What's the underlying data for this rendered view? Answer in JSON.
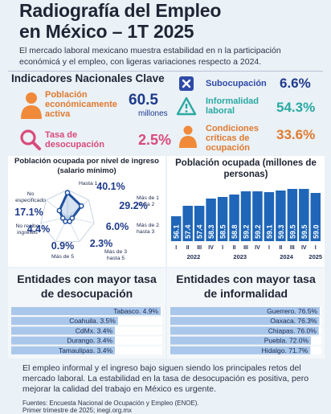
{
  "header": {
    "title_line1": "Radiografía del Empleo",
    "title_line2": "en México – 1T 2025",
    "lead": "El mercado laboral mexicano muestra estabilidad en n la participación económicá y el empleo, con ligeras variaciones respecto a 2024."
  },
  "indicators": {
    "title": "Indicadores Nacionales Clave",
    "items": [
      {
        "label": "Población económicamente activa",
        "value": "60.5",
        "unit": "millones",
        "icon": "person-icon",
        "color": "#f08a3a"
      },
      {
        "label": "Tasa de desocupación",
        "value": "2.5%",
        "icon": "magnifier-icon",
        "color": "#d94a7a"
      },
      {
        "label": "Subocupación",
        "value": "6.6%",
        "icon": "x-square-icon",
        "color": "#2e4aa6"
      },
      {
        "label": "Informalidad laboral",
        "value": "54.3%",
        "icon": "warning-triangle-icon",
        "color": "#2aa9a2"
      },
      {
        "label": "Condiciones críticas de ocupación",
        "value": "33.6%",
        "icon": "person-icon",
        "color": "#f08a3a"
      }
    ]
  },
  "chart_data": [
    {
      "type": "radar",
      "title": "Población ocupada por nivel de ingreso (salario mínimo)",
      "categories": [
        "Hasta 1",
        "Más de 1 hasta 2",
        "Más de 2 hasta 3",
        "Más de 3 hasta 5",
        "Más de 5",
        "No recibe ingresos",
        "No especificado"
      ],
      "values": [
        40.1,
        29.2,
        6.0,
        2.3,
        0.9,
        4.4,
        17.1
      ],
      "value_labels": [
        "40.1%",
        "29.2%",
        "6.0%",
        "2.3%",
        "0.9%",
        "4.4%",
        "17.1%"
      ]
    },
    {
      "type": "bar",
      "title": "Población ocupada (millones de personas)",
      "categories": [
        "I",
        "II",
        "III",
        "IV",
        "I",
        "II",
        "III",
        "IV",
        "I",
        "II",
        "III",
        "IV",
        "I"
      ],
      "years": [
        "2022",
        "2023",
        "2024",
        "2025"
      ],
      "values": [
        56.1,
        57.4,
        57.4,
        58.3,
        58.5,
        58.8,
        59.2,
        59.2,
        59.1,
        59.3,
        59.5,
        59.5,
        59.0
      ],
      "color": "#1f66b8"
    },
    {
      "type": "bar",
      "orientation": "horizontal",
      "title": "Entidades con mayor tasa de desocupación",
      "categories": [
        "Tabasco",
        "Coahuila",
        "CdMx",
        "Durango",
        "Tamaulipas"
      ],
      "values": [
        4.9,
        3.5,
        3.4,
        3.4,
        3.4
      ],
      "labels": [
        "Tabasco. 4.9%",
        "Coahuila. 3.5%",
        "CdMx. 3.4%",
        "Durango. 3.4%",
        "Tamaulipas. 3.4%"
      ],
      "color": "#a9c7ea"
    },
    {
      "type": "bar",
      "orientation": "horizontal",
      "title": "Entidades con mayor tasa de informalidad",
      "categories": [
        "Guerrero",
        "Oaxaca",
        "Chiapas",
        "Puebla",
        "Hidalgo"
      ],
      "values": [
        76.5,
        76.3,
        76.0,
        72.0,
        71.7
      ],
      "labels": [
        "Guerrero. 76.5%",
        "Oaxaca. 76.3%",
        "Chiapas. 76.0%",
        "Puebla. 72.0%",
        "Hidalgo. 71.7%"
      ],
      "color": "#a9c7ea"
    }
  ],
  "footer": {
    "text": "El empleo informal y el ingreso bajo siguen siendo los principales retos del mercado laboral. La estabilidad en la tasa de desocupación es positiva, pero mejorar la calidad del trabajo en México es urgente.",
    "source1": "Fuentes: Encuesta Nacional de Ocupación y Empleo (ENOE).",
    "source2": "Primer trimestre de 2025; inegi.org.mx"
  }
}
